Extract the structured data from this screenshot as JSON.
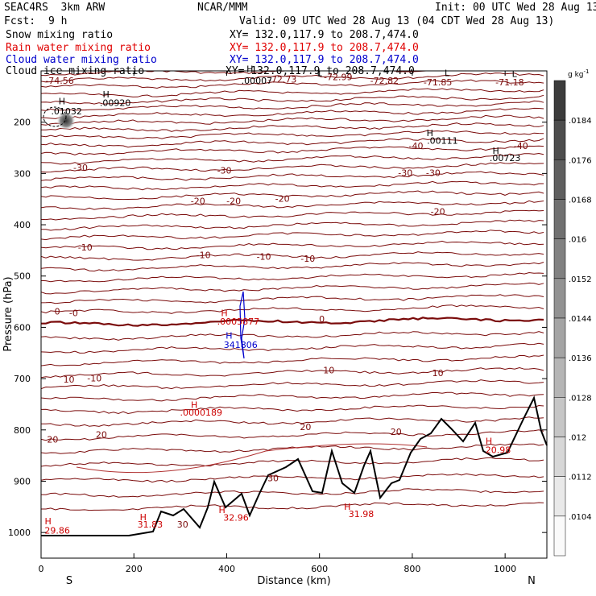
{
  "header": {
    "model": "SEAC4RS  3km ARW",
    "org": "NCAR/MMM",
    "init": "Init: 00 UTC Wed 28 Aug 13",
    "fcst_label": "Fcst:",
    "fcst_value": "9 h",
    "valid": "Valid: 09 UTC Wed 28 Aug 13 (04 CDT Wed 28 Aug 13)"
  },
  "fields": [
    {
      "name": "Snow mixing ratio",
      "xy": "",
      "color": "#000000"
    },
    {
      "name": "Rain water mixing ratio",
      "xy": "XY= 132.0,117.9 to 208.7,474.0",
      "color": "#ff0000"
    },
    {
      "name": "Cloud water mixing ratio",
      "xy": "XY= 132.0,117.9 to 208.7,474.0",
      "color": "#0000cc"
    },
    {
      "name": "Cloud ice mixing ratio",
      "xy": "XY= 132.0,117.9 to 208.7,474.0",
      "color": "#000000"
    }
  ],
  "snow_xy": "XY= 132.0,117.9 to 208.7,474.0",
  "chart_data": {
    "type": "cross-section contour",
    "xlabel": "Distance (km)",
    "ylabel": "Pressure (hPa)",
    "xlim": [
      0,
      1090
    ],
    "ylim": [
      1050,
      100
    ],
    "x_ticks": [
      0,
      200,
      400,
      600,
      800,
      1000
    ],
    "y_ticks": [
      200,
      300,
      400,
      500,
      600,
      700,
      800,
      900,
      1000
    ],
    "x_end_labels": {
      "left": "S",
      "right": "N"
    },
    "colorbar": {
      "unit": "g kg",
      "unit_exp": "-1",
      "levels": [
        ".0104",
        ".0112",
        ".012",
        ".0128",
        ".0136",
        ".0144",
        ".0152",
        ".016",
        ".0168",
        ".0176",
        ".0184"
      ]
    },
    "temperature_labels": [
      {
        "text": "-74.56",
        "x": 40,
        "p": 125
      },
      {
        "text": "-72.73",
        "x": 520,
        "p": 123
      },
      {
        "text": "-72.99",
        "x": 640,
        "p": 118
      },
      {
        "text": "-72.82",
        "x": 740,
        "p": 125
      },
      {
        "text": "-71.85",
        "x": 855,
        "p": 128
      },
      {
        "text": "-71.18",
        "x": 1010,
        "p": 128
      },
      {
        "text": "-40",
        "x": 808,
        "p": 252
      },
      {
        "text": "-40",
        "x": 1034,
        "p": 252
      },
      {
        "text": "-30",
        "x": 85,
        "p": 295
      },
      {
        "text": "-30",
        "x": 395,
        "p": 300
      },
      {
        "text": "-30",
        "x": 785,
        "p": 305
      },
      {
        "text": "-30",
        "x": 845,
        "p": 305
      },
      {
        "text": "-20",
        "x": 520,
        "p": 355
      },
      {
        "text": "-20",
        "x": 338,
        "p": 360
      },
      {
        "text": "-20",
        "x": 415,
        "p": 360
      },
      {
        "text": "-20",
        "x": 855,
        "p": 380
      },
      {
        "text": "-10",
        "x": 95,
        "p": 450
      },
      {
        "text": "-10",
        "x": 350,
        "p": 465
      },
      {
        "text": "-10",
        "x": 480,
        "p": 468
      },
      {
        "text": "-10",
        "x": 575,
        "p": 472
      },
      {
        "text": "0",
        "x": 35,
        "p": 575
      },
      {
        "text": "-0",
        "x": 70,
        "p": 578
      },
      {
        "text": "0",
        "x": 605,
        "p": 590
      },
      {
        "text": "-10",
        "x": 115,
        "p": 705
      },
      {
        "text": "10",
        "x": 60,
        "p": 708
      },
      {
        "text": "10",
        "x": 620,
        "p": 690
      },
      {
        "text": "10",
        "x": 855,
        "p": 695
      },
      {
        "text": "20",
        "x": 130,
        "p": 815
      },
      {
        "text": "20",
        "x": 25,
        "p": 825
      },
      {
        "text": "20",
        "x": 570,
        "p": 800
      },
      {
        "text": "20",
        "x": 765,
        "p": 810
      },
      {
        "text": "30",
        "x": 500,
        "p": 900
      },
      {
        "text": "30",
        "x": 305,
        "p": 990
      }
    ],
    "extrema_labels": [
      {
        "text": "H",
        "x": 45,
        "p": 165,
        "color": "#000000"
      },
      {
        "text": ".01032",
        "x": 55,
        "p": 185,
        "color": "#000000"
      },
      {
        "text": "H",
        "x": 140,
        "p": 152,
        "color": "#000000"
      },
      {
        "text": ".00920",
        "x": 160,
        "p": 168,
        "color": "#000000"
      },
      {
        "text": "H",
        "x": 450,
        "p": 102,
        "color": "#000000"
      },
      {
        "text": ".00007",
        "x": 465,
        "p": 125,
        "color": "#000000"
      },
      {
        "text": "L",
        "x": 600,
        "p": 110,
        "color": "#000000"
      },
      {
        "text": "L",
        "x": 875,
        "p": 110,
        "color": "#000000"
      },
      {
        "text": "L",
        "x": 1020,
        "p": 112,
        "color": "#000000"
      },
      {
        "text": "H",
        "x": 838,
        "p": 227,
        "color": "#000000"
      },
      {
        "text": ".00111",
        "x": 865,
        "p": 242,
        "color": "#000000"
      },
      {
        "text": "H",
        "x": 980,
        "p": 262,
        "color": "#000000"
      },
      {
        "text": ".00723",
        "x": 1000,
        "p": 276,
        "color": "#000000"
      },
      {
        "text": "H",
        "x": 395,
        "p": 578,
        "color": "#cc0000"
      },
      {
        "text": ".0005877",
        "x": 425,
        "p": 595,
        "color": "#cc0000"
      },
      {
        "text": "H",
        "x": 405,
        "p": 622,
        "color": "#0000cc"
      },
      {
        "text": "341806",
        "x": 430,
        "p": 640,
        "color": "#0000cc"
      },
      {
        "text": "H",
        "x": 330,
        "p": 757,
        "color": "#cc0000"
      },
      {
        "text": ".0000189",
        "x": 345,
        "p": 772,
        "color": "#cc0000"
      },
      {
        "text": "H",
        "x": 15,
        "p": 984,
        "color": "#cc0000"
      },
      {
        "text": "29.86",
        "x": 35,
        "p": 1002,
        "color": "#cc0000"
      },
      {
        "text": "H",
        "x": 220,
        "p": 976,
        "color": "#cc0000"
      },
      {
        "text": "31.83",
        "x": 235,
        "p": 990,
        "color": "#cc0000"
      },
      {
        "text": "H",
        "x": 390,
        "p": 962,
        "color": "#cc0000"
      },
      {
        "text": "32.96",
        "x": 420,
        "p": 977,
        "color": "#cc0000"
      },
      {
        "text": "H",
        "x": 660,
        "p": 956,
        "color": "#cc0000"
      },
      {
        "text": "31.98",
        "x": 690,
        "p": 970,
        "color": "#cc0000"
      },
      {
        "text": "H",
        "x": 965,
        "p": 828,
        "color": "#cc0000"
      },
      {
        "text": "20.98",
        "x": 985,
        "p": 845,
        "color": "#cc0000"
      }
    ]
  }
}
